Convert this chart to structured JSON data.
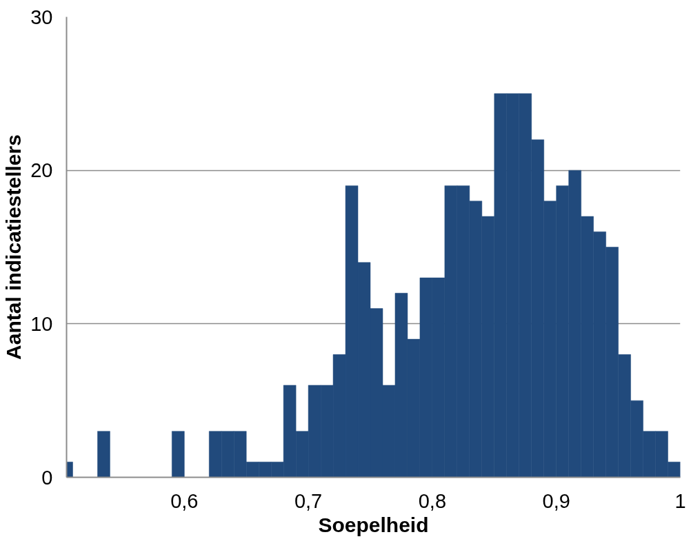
{
  "chart_data": {
    "type": "histogram",
    "xlabel": "Soepelheid",
    "ylabel": "Aantal indicatiestellers",
    "bins": [
      0.505,
      0.51,
      0.52,
      0.53,
      0.54,
      0.55,
      0.56,
      0.57,
      0.58,
      0.59,
      0.6,
      0.61,
      0.62,
      0.63,
      0.64,
      0.65,
      0.66,
      0.67,
      0.68,
      0.69,
      0.7,
      0.71,
      0.72,
      0.73,
      0.74,
      0.75,
      0.76,
      0.77,
      0.78,
      0.79,
      0.8,
      0.81,
      0.82,
      0.83,
      0.84,
      0.85,
      0.86,
      0.87,
      0.88,
      0.89,
      0.9,
      0.91,
      0.92,
      0.93,
      0.94,
      0.95,
      0.96,
      0.97,
      0.98,
      0.99,
      1.0
    ],
    "values": [
      1,
      0,
      0,
      3,
      0,
      0,
      0,
      0,
      0,
      3,
      0,
      0,
      3,
      3,
      3,
      1,
      1,
      1,
      6,
      3,
      6,
      6,
      8,
      19,
      14,
      11,
      6,
      12,
      9,
      13,
      13,
      19,
      19,
      18,
      17,
      25,
      25,
      25,
      22,
      18,
      19,
      20,
      17,
      16,
      15,
      8,
      5,
      3,
      3,
      1
    ],
    "color": "#214a7c",
    "xlim": [
      0.505,
      1.0
    ],
    "xticks": [
      {
        "value": 0.6,
        "label": "0,6"
      },
      {
        "value": 0.7,
        "label": "0,7"
      },
      {
        "value": 0.8,
        "label": "0,8"
      },
      {
        "value": 0.9,
        "label": "0,9"
      },
      1
    ],
    "ylim": [
      0,
      30
    ],
    "yticks": [
      0,
      10,
      20,
      30
    ],
    "grid": "y"
  }
}
